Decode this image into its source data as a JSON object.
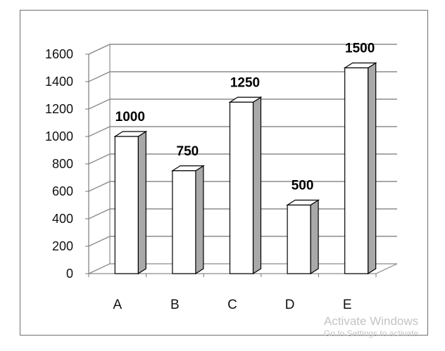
{
  "chart_data": {
    "type": "bar",
    "categories": [
      "A",
      "B",
      "C",
      "D",
      "E"
    ],
    "values": [
      1000,
      750,
      1250,
      500,
      1500
    ],
    "data_labels": [
      "1000",
      "750",
      "1250",
      "500",
      "1500"
    ],
    "yticks": [
      0,
      200,
      400,
      600,
      800,
      1000,
      1200,
      1400,
      1600
    ],
    "ylim": [
      0,
      1600
    ],
    "grid": true,
    "style": "3d",
    "bar_color": "#ffffff",
    "bar_side_color": "#a9a9a9",
    "grid_color": "#8c8c8c"
  },
  "watermark": {
    "title": "Activate Windows",
    "subtitle": "Go to Settings to activate"
  }
}
